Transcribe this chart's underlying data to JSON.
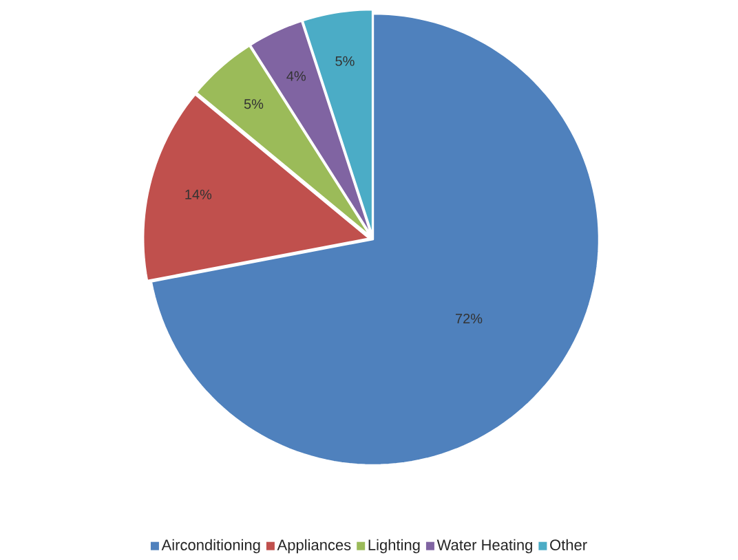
{
  "chart_data": {
    "type": "pie",
    "categories": [
      "Airconditioning",
      "Appliances",
      "Lighting",
      "Water Heating",
      "Other"
    ],
    "values": [
      72,
      14,
      5,
      4,
      5
    ],
    "colors": [
      "#4f81bd",
      "#c0504d",
      "#9bbb59",
      "#8064a2",
      "#4bacc6"
    ],
    "value_labels": [
      "72%",
      "14%",
      "5%",
      "4%",
      "5%"
    ],
    "legend": "bottom"
  }
}
